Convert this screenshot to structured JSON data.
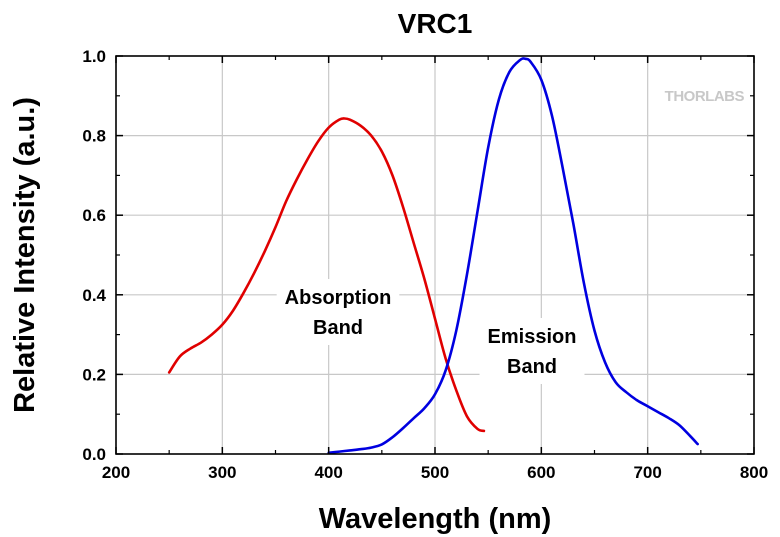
{
  "chart_data": {
    "type": "line",
    "title": "VRC1",
    "xlabel": "Wavelength (nm)",
    "ylabel": "Relative Intensity (a.u.)",
    "xlim": [
      200,
      800
    ],
    "ylim": [
      0.0,
      1.0
    ],
    "x_ticks": [
      200,
      300,
      400,
      500,
      600,
      700,
      800
    ],
    "x_tick_labels": [
      "200",
      "300",
      "400",
      "500",
      "600",
      "700",
      "800"
    ],
    "y_ticks": [
      0.0,
      0.2,
      0.4,
      0.6,
      0.8,
      1.0
    ],
    "y_tick_labels": [
      "0.0",
      "0.2",
      "0.4",
      "0.6",
      "0.8",
      "1.0"
    ],
    "grid": true,
    "series": [
      {
        "name": "Absorption Band",
        "color": "#e00000",
        "points": [
          [
            250,
            0.205
          ],
          [
            260,
            0.245
          ],
          [
            270,
            0.265
          ],
          [
            280,
            0.28
          ],
          [
            290,
            0.3
          ],
          [
            300,
            0.325
          ],
          [
            310,
            0.36
          ],
          [
            320,
            0.405
          ],
          [
            330,
            0.455
          ],
          [
            340,
            0.51
          ],
          [
            350,
            0.57
          ],
          [
            360,
            0.635
          ],
          [
            370,
            0.69
          ],
          [
            380,
            0.74
          ],
          [
            390,
            0.785
          ],
          [
            400,
            0.82
          ],
          [
            410,
            0.84
          ],
          [
            415,
            0.843
          ],
          [
            420,
            0.84
          ],
          [
            430,
            0.825
          ],
          [
            440,
            0.8
          ],
          [
            450,
            0.76
          ],
          [
            460,
            0.7
          ],
          [
            470,
            0.62
          ],
          [
            480,
            0.53
          ],
          [
            490,
            0.44
          ],
          [
            500,
            0.34
          ],
          [
            510,
            0.24
          ],
          [
            520,
            0.16
          ],
          [
            530,
            0.095
          ],
          [
            540,
            0.063
          ],
          [
            546,
            0.058
          ]
        ]
      },
      {
        "name": "Emission Band",
        "color": "#0000e0",
        "points": [
          [
            400,
            0.003
          ],
          [
            410,
            0.006
          ],
          [
            420,
            0.009
          ],
          [
            430,
            0.012
          ],
          [
            440,
            0.016
          ],
          [
            450,
            0.024
          ],
          [
            460,
            0.042
          ],
          [
            470,
            0.065
          ],
          [
            480,
            0.09
          ],
          [
            490,
            0.115
          ],
          [
            500,
            0.15
          ],
          [
            510,
            0.21
          ],
          [
            520,
            0.31
          ],
          [
            530,
            0.45
          ],
          [
            540,
            0.61
          ],
          [
            550,
            0.77
          ],
          [
            560,
            0.89
          ],
          [
            570,
            0.96
          ],
          [
            580,
            0.99
          ],
          [
            585,
            0.993
          ],
          [
            590,
            0.985
          ],
          [
            600,
            0.94
          ],
          [
            610,
            0.85
          ],
          [
            620,
            0.72
          ],
          [
            630,
            0.58
          ],
          [
            640,
            0.43
          ],
          [
            650,
            0.31
          ],
          [
            660,
            0.23
          ],
          [
            670,
            0.18
          ],
          [
            680,
            0.155
          ],
          [
            690,
            0.135
          ],
          [
            700,
            0.12
          ],
          [
            710,
            0.105
          ],
          [
            720,
            0.09
          ],
          [
            730,
            0.072
          ],
          [
            740,
            0.045
          ],
          [
            747,
            0.025
          ]
        ]
      }
    ],
    "annotations": [
      {
        "text_lines": [
          "Absorption",
          "Band"
        ],
        "series": "Absorption Band"
      },
      {
        "text_lines": [
          "Emission",
          "Band"
        ],
        "series": "Emission Band"
      }
    ],
    "watermark": "THORLABS"
  }
}
